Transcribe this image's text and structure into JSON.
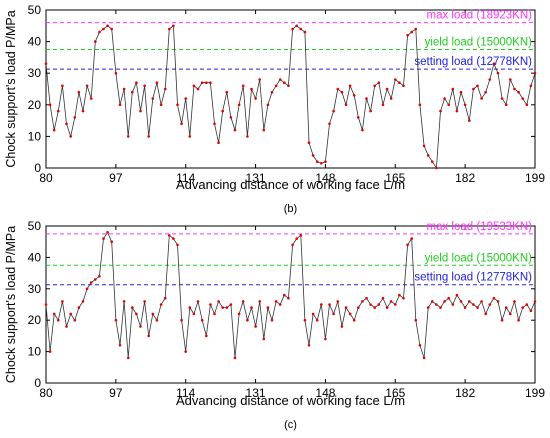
{
  "chart_data": [
    {
      "type": "line",
      "panel_label": "(b)",
      "xlabel": "Advancing distance of working face L/m",
      "ylabel": "Chock support's load   P/MPa",
      "xlim": [
        80,
        199
      ],
      "ylim": [
        0,
        50
      ],
      "x_ticks": [
        80,
        97,
        114,
        131,
        148,
        165,
        182,
        199
      ],
      "y_ticks": [
        0,
        10,
        20,
        30,
        40,
        50
      ],
      "grid": false,
      "reference_lines": [
        {
          "label": "max load (18923KN)",
          "y": 46,
          "color": "#ff33ff"
        },
        {
          "label": "yield load (15000KN)",
          "y": 37.5,
          "color": "#22cc22"
        },
        {
          "label": "setting load (12778KN)",
          "y": 31.3,
          "color": "#2222dd"
        }
      ],
      "series": [
        {
          "color": "#e00000",
          "x": [
            80,
            81,
            82,
            83,
            84,
            85,
            86,
            87,
            88,
            89,
            90,
            91,
            92,
            93,
            94,
            95,
            96,
            97,
            98,
            99,
            100,
            101,
            102,
            103,
            104,
            105,
            106,
            107,
            108,
            109,
            110,
            111,
            112,
            113,
            114,
            115,
            116,
            117,
            118,
            119,
            120,
            121,
            122,
            123,
            124,
            125,
            126,
            127,
            128,
            129,
            130,
            131,
            132,
            133,
            134,
            135,
            136,
            137,
            138,
            139,
            140,
            141,
            142,
            143,
            144,
            145,
            146,
            147,
            148,
            149,
            150,
            151,
            152,
            153,
            154,
            155,
            156,
            157,
            158,
            159,
            160,
            161,
            162,
            163,
            164,
            165,
            166,
            167,
            168,
            169,
            170,
            171,
            172,
            173,
            174,
            175,
            176,
            177,
            178,
            179,
            180,
            181,
            182,
            183,
            184,
            185,
            186,
            187,
            188,
            189,
            190,
            191,
            192,
            193,
            194,
            195,
            196,
            197,
            198,
            199
          ],
          "y": [
            33,
            20,
            12,
            18,
            26,
            14,
            10,
            16,
            24,
            18,
            26,
            22,
            40,
            43,
            44,
            45,
            44,
            30,
            20,
            25,
            10,
            24,
            27,
            18,
            26,
            10,
            22,
            27,
            20,
            25,
            44,
            45,
            20,
            14,
            22,
            10,
            26,
            25,
            27,
            27,
            27,
            14,
            8,
            18,
            24,
            16,
            12,
            20,
            26,
            10,
            25,
            22,
            28,
            12,
            20,
            24,
            26,
            28,
            27,
            26,
            44,
            45,
            44,
            43,
            8,
            4,
            2,
            1.5,
            2,
            14,
            18,
            25,
            24,
            20,
            26,
            23,
            16,
            12,
            22,
            18,
            26,
            27,
            20,
            25,
            22,
            28,
            27,
            26,
            42,
            43,
            44,
            20,
            7,
            4,
            2,
            0,
            18,
            22,
            20,
            25,
            18,
            24,
            20,
            15,
            25,
            26,
            22,
            24,
            28,
            33,
            30,
            22,
            20,
            28,
            25,
            24,
            22,
            20,
            26,
            30
          ]
        }
      ]
    },
    {
      "type": "line",
      "panel_label": "(c)",
      "xlabel": "Advancing distance of working face L/m",
      "ylabel": "Chock support's load   P/MPa",
      "xlim": [
        80,
        199
      ],
      "ylim": [
        0,
        50
      ],
      "x_ticks": [
        80,
        97,
        114,
        131,
        148,
        165,
        182,
        199
      ],
      "y_ticks": [
        0,
        10,
        20,
        30,
        40,
        50
      ],
      "grid": false,
      "reference_lines": [
        {
          "label": "max load (19533KN)",
          "y": 47.5,
          "color": "#ff33ff"
        },
        {
          "label": "yield load (15000KN)",
          "y": 37.5,
          "color": "#22cc22"
        },
        {
          "label": "setting load (12778KN)",
          "y": 31.3,
          "color": "#2222dd"
        }
      ],
      "series": [
        {
          "color": "#e00000",
          "x": [
            80,
            81,
            82,
            83,
            84,
            85,
            86,
            87,
            88,
            89,
            90,
            91,
            92,
            93,
            94,
            95,
            96,
            97,
            98,
            99,
            100,
            101,
            102,
            103,
            104,
            105,
            106,
            107,
            108,
            109,
            110,
            111,
            112,
            113,
            114,
            115,
            116,
            117,
            118,
            119,
            120,
            121,
            122,
            123,
            124,
            125,
            126,
            127,
            128,
            129,
            130,
            131,
            132,
            133,
            134,
            135,
            136,
            137,
            138,
            139,
            140,
            141,
            142,
            143,
            144,
            145,
            146,
            147,
            148,
            149,
            150,
            151,
            152,
            153,
            154,
            155,
            156,
            157,
            158,
            159,
            160,
            161,
            162,
            163,
            164,
            165,
            166,
            167,
            168,
            169,
            170,
            171,
            172,
            173,
            174,
            175,
            176,
            177,
            178,
            179,
            180,
            181,
            182,
            183,
            184,
            185,
            186,
            187,
            188,
            189,
            190,
            191,
            192,
            193,
            194,
            195,
            196,
            197,
            198,
            199
          ],
          "y": [
            25,
            10,
            22,
            20,
            26,
            18,
            22,
            20,
            24,
            26,
            30,
            32,
            33,
            34,
            46,
            48,
            45,
            20,
            12,
            26,
            8,
            24,
            22,
            18,
            26,
            15,
            22,
            20,
            25,
            27,
            47,
            46,
            44,
            20,
            10,
            24,
            22,
            26,
            20,
            15,
            25,
            22,
            26,
            24,
            24,
            25,
            8,
            22,
            26,
            20,
            24,
            18,
            26,
            14,
            24,
            20,
            26,
            25,
            28,
            27,
            44,
            46,
            47,
            20,
            12,
            22,
            20,
            25,
            14,
            25,
            22,
            26,
            18,
            24,
            22,
            20,
            24,
            26,
            27,
            25,
            24,
            25,
            27,
            24,
            26,
            25,
            28,
            27,
            44,
            46,
            20,
            12,
            8,
            24,
            26,
            25,
            24,
            26,
            27,
            25,
            28,
            26,
            24,
            26,
            25,
            24,
            26,
            22,
            25,
            27,
            26,
            20,
            24,
            22,
            26,
            20,
            24,
            25,
            23,
            26
          ]
        }
      ]
    }
  ]
}
